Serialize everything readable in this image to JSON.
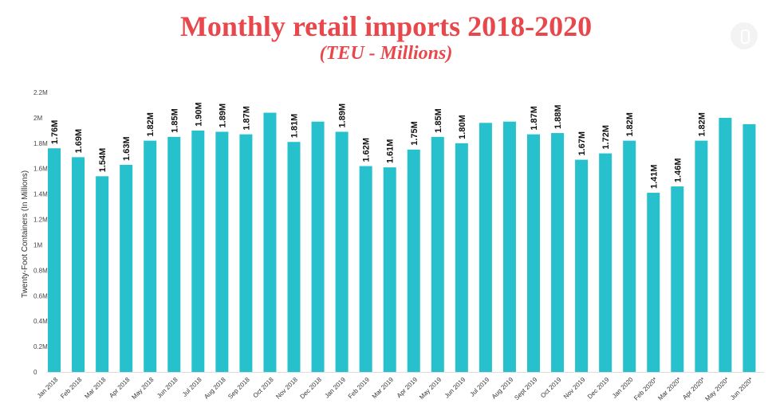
{
  "chart_data": {
    "type": "bar",
    "title": "Monthly retail imports 2018-2020",
    "subtitle": "(TEU - Millions)",
    "xlabel": "",
    "ylabel": "Twenty-Foot Containers (In Millions)",
    "ylim": [
      0,
      2.2
    ],
    "yticks": [
      0,
      0.2,
      0.4,
      0.6,
      0.8,
      1.0,
      1.2,
      1.4,
      1.6,
      1.8,
      2.0,
      2.2
    ],
    "ytick_labels": [
      "0",
      "0.2M",
      "0.4M",
      "0.6M",
      "0.8M",
      "1M",
      "1.2M",
      "1.4M",
      "1.6M",
      "1.8M",
      "2M",
      "2.2M"
    ],
    "bar_color": "#26c1cc",
    "categories": [
      "Jan 2018",
      "Feb 2018",
      "Mar 2018",
      "Apr 2018",
      "May 2018",
      "Jun 2018",
      "Jul 2018",
      "Aug 2018",
      "Sep 2018",
      "Oct 2018",
      "Nov 2018",
      "Dec 2018",
      "Jan 2019",
      "Feb 2019",
      "Mar 2019",
      "Apr 2019",
      "May 2019",
      "Jun 2019",
      "Jul 2019",
      "Aug 2019",
      "Sept 2019",
      "Oct 2019",
      "Nov 2019",
      "Dec 2019",
      "Jan 2020",
      "Feb 2020*",
      "Mar 2020*",
      "Apr 2020*",
      "May 2020*",
      "Jun 2020*"
    ],
    "values": [
      1.76,
      1.69,
      1.54,
      1.63,
      1.82,
      1.85,
      1.9,
      1.89,
      1.87,
      2.04,
      1.81,
      1.97,
      1.89,
      1.62,
      1.61,
      1.75,
      1.85,
      1.8,
      1.96,
      1.97,
      1.87,
      1.88,
      1.67,
      1.72,
      1.82,
      1.41,
      1.46,
      1.82,
      2.0,
      1.95
    ],
    "data_labels": [
      "1.76M",
      "1.69M",
      "1.54M",
      "1.63M",
      "1.82M",
      "1.85M",
      "1.90M",
      "1.89M",
      "1.87M",
      "",
      "1.81M",
      "",
      "1.89M",
      "1.62M",
      "1.61M",
      "1.75M",
      "1.85M",
      "1.80M",
      "",
      "",
      "1.87M",
      "1.88M",
      "1.67M",
      "1.72M",
      "1.82M",
      "1.41M",
      "1.46M",
      "1.82M",
      "",
      ""
    ]
  }
}
